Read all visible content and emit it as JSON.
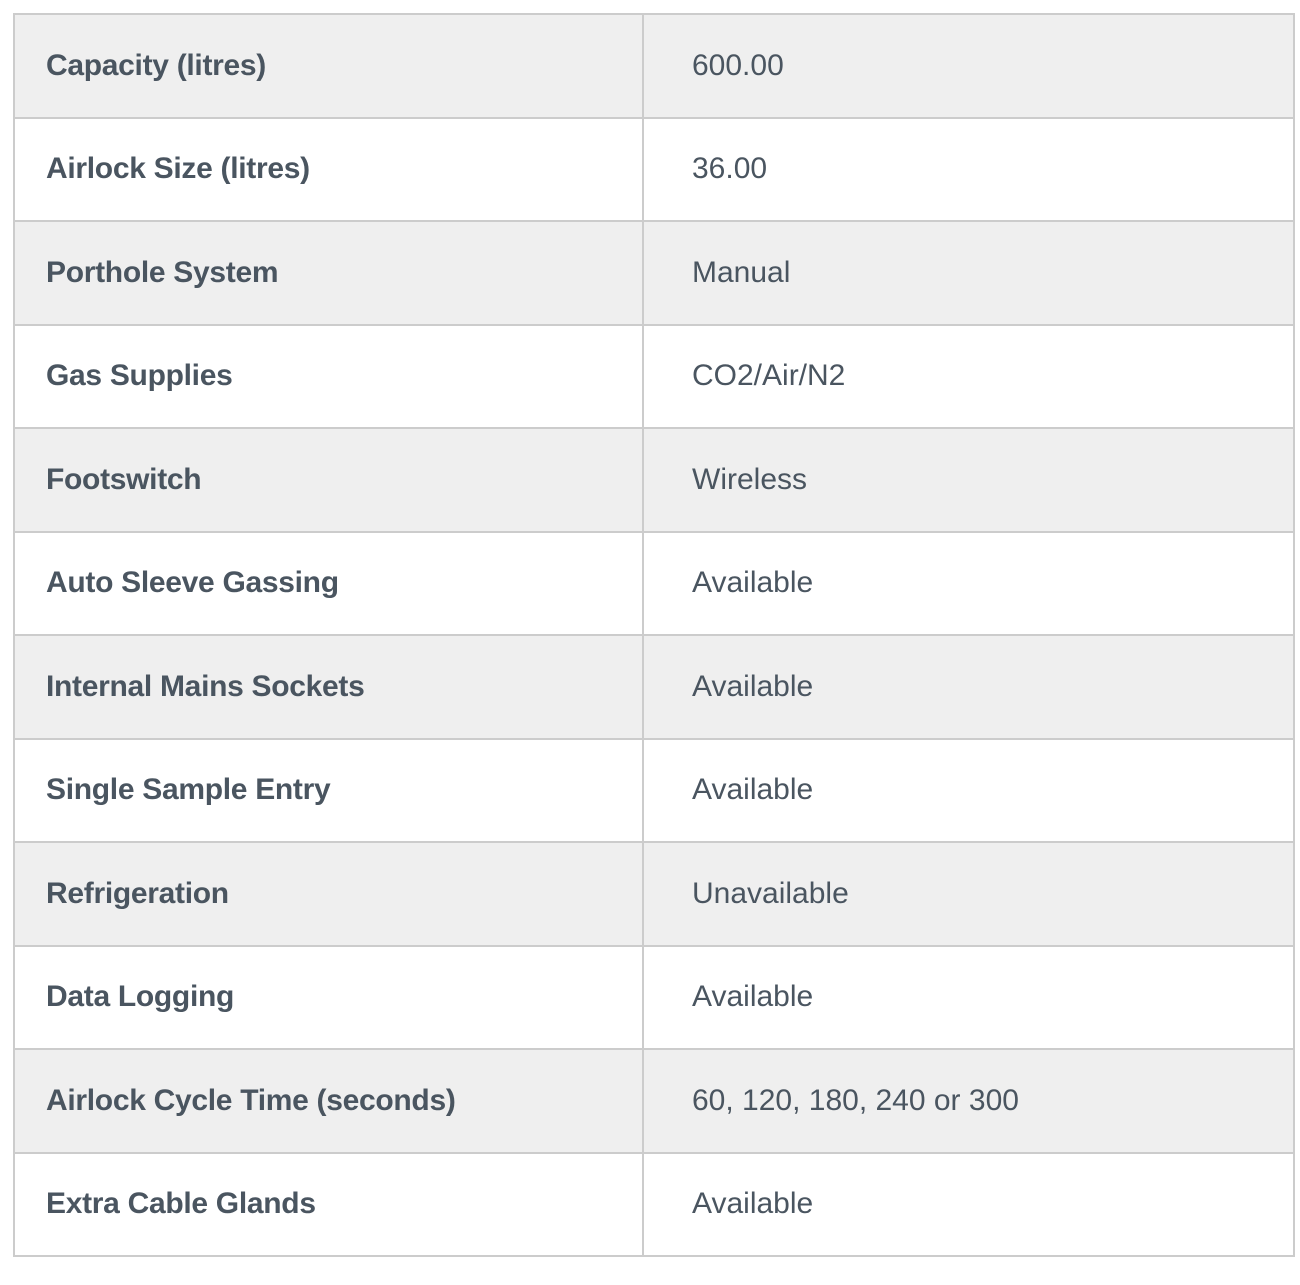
{
  "colors": {
    "row_shaded": "#efefef",
    "row_plain": "#ffffff",
    "border": "#cccccc",
    "text": "#4a5560"
  },
  "rows": [
    {
      "label": "Capacity (litres)",
      "value": "600.00"
    },
    {
      "label": "Airlock Size (litres)",
      "value": "36.00"
    },
    {
      "label": "Porthole System",
      "value": "Manual"
    },
    {
      "label": "Gas Supplies",
      "value": "CO2/Air/N2"
    },
    {
      "label": "Footswitch",
      "value": "Wireless"
    },
    {
      "label": "Auto Sleeve Gassing",
      "value": "Available"
    },
    {
      "label": "Internal Mains Sockets",
      "value": "Available"
    },
    {
      "label": "Single Sample Entry",
      "value": "Available"
    },
    {
      "label": "Refrigeration",
      "value": "Unavailable"
    },
    {
      "label": "Data Logging",
      "value": "Available"
    },
    {
      "label": "Airlock Cycle Time (seconds)",
      "value": "60, 120, 180, 240 or 300"
    },
    {
      "label": "Extra Cable Glands",
      "value": "Available"
    }
  ]
}
